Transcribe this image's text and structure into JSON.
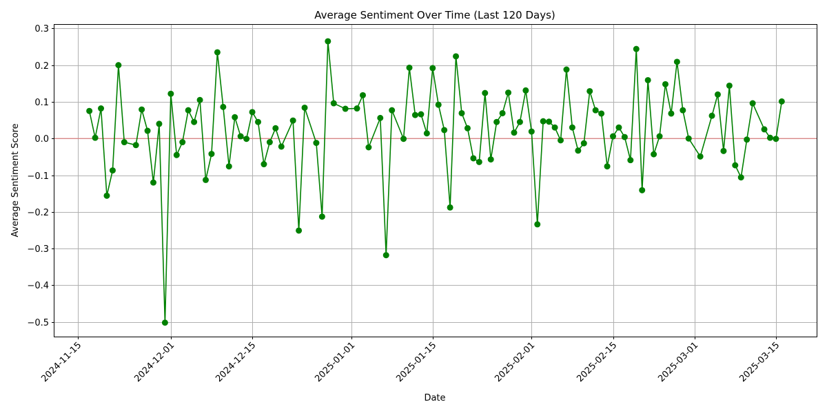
{
  "chart_data": {
    "type": "line",
    "title": "Average Sentiment Over Time (Last 120 Days)",
    "xlabel": "Date",
    "ylabel": "Average Sentiment Score",
    "x_ticks": [
      "2024-11-15",
      "2024-12-01",
      "2024-12-15",
      "2025-01-01",
      "2025-01-15",
      "2025-02-01",
      "2025-02-15",
      "2025-03-01",
      "2025-03-15"
    ],
    "y_ticks": [
      -0.5,
      -0.4,
      -0.3,
      -0.2,
      -0.1,
      0.0,
      0.1,
      0.2,
      0.3
    ],
    "ylim": [
      -0.54,
      0.31
    ],
    "xlim": [
      "2024-11-11",
      "2025-03-22"
    ],
    "grid": true,
    "reference_line": {
      "y": 0.0,
      "color": "#e07b7b"
    },
    "colors": {
      "series": "#008000",
      "reference": "#e07b7b",
      "grid": "#b0b0b0"
    },
    "series": [
      {
        "marker": "circle",
        "color": "#008000",
        "points": [
          {
            "x": "2024-11-17",
            "y": 0.075
          },
          {
            "x": "2024-11-18",
            "y": 0.002
          },
          {
            "x": "2024-11-19",
            "y": 0.082
          },
          {
            "x": "2024-11-20",
            "y": -0.156
          },
          {
            "x": "2024-11-21",
            "y": -0.087
          },
          {
            "x": "2024-11-22",
            "y": 0.2
          },
          {
            "x": "2024-11-23",
            "y": -0.01
          },
          {
            "x": "2024-11-25",
            "y": -0.018
          },
          {
            "x": "2024-11-26",
            "y": 0.079
          },
          {
            "x": "2024-11-27",
            "y": 0.021
          },
          {
            "x": "2024-11-28",
            "y": -0.12
          },
          {
            "x": "2024-11-29",
            "y": 0.04
          },
          {
            "x": "2024-11-30",
            "y": -0.502
          },
          {
            "x": "2024-12-01",
            "y": 0.122
          },
          {
            "x": "2024-12-02",
            "y": -0.045
          },
          {
            "x": "2024-12-03",
            "y": -0.01
          },
          {
            "x": "2024-12-04",
            "y": 0.077
          },
          {
            "x": "2024-12-05",
            "y": 0.045
          },
          {
            "x": "2024-12-06",
            "y": 0.105
          },
          {
            "x": "2024-12-07",
            "y": -0.113
          },
          {
            "x": "2024-12-08",
            "y": -0.042
          },
          {
            "x": "2024-12-09",
            "y": 0.235
          },
          {
            "x": "2024-12-10",
            "y": 0.086
          },
          {
            "x": "2024-12-11",
            "y": -0.076
          },
          {
            "x": "2024-12-12",
            "y": 0.058
          },
          {
            "x": "2024-12-13",
            "y": 0.006
          },
          {
            "x": "2024-12-14",
            "y": -0.001
          },
          {
            "x": "2024-12-15",
            "y": 0.072
          },
          {
            "x": "2024-12-16",
            "y": 0.045
          },
          {
            "x": "2024-12-17",
            "y": -0.07
          },
          {
            "x": "2024-12-18",
            "y": -0.01
          },
          {
            "x": "2024-12-19",
            "y": 0.028
          },
          {
            "x": "2024-12-20",
            "y": -0.022
          },
          {
            "x": "2024-12-22",
            "y": 0.049
          },
          {
            "x": "2024-12-23",
            "y": -0.251
          },
          {
            "x": "2024-12-24",
            "y": 0.084
          },
          {
            "x": "2024-12-26",
            "y": -0.012
          },
          {
            "x": "2024-12-27",
            "y": -0.213
          },
          {
            "x": "2024-12-28",
            "y": 0.265
          },
          {
            "x": "2024-12-29",
            "y": 0.096
          },
          {
            "x": "2024-12-31",
            "y": 0.081
          },
          {
            "x": "2025-01-02",
            "y": 0.082
          },
          {
            "x": "2025-01-03",
            "y": 0.118
          },
          {
            "x": "2025-01-04",
            "y": -0.024
          },
          {
            "x": "2025-01-06",
            "y": 0.056
          },
          {
            "x": "2025-01-07",
            "y": -0.318
          },
          {
            "x": "2025-01-08",
            "y": 0.077
          },
          {
            "x": "2025-01-10",
            "y": -0.001
          },
          {
            "x": "2025-01-11",
            "y": 0.193
          },
          {
            "x": "2025-01-12",
            "y": 0.064
          },
          {
            "x": "2025-01-13",
            "y": 0.066
          },
          {
            "x": "2025-01-14",
            "y": 0.014
          },
          {
            "x": "2025-01-15",
            "y": 0.192
          },
          {
            "x": "2025-01-16",
            "y": 0.092
          },
          {
            "x": "2025-01-17",
            "y": 0.023
          },
          {
            "x": "2025-01-18",
            "y": -0.188
          },
          {
            "x": "2025-01-19",
            "y": 0.224
          },
          {
            "x": "2025-01-20",
            "y": 0.069
          },
          {
            "x": "2025-01-21",
            "y": 0.028
          },
          {
            "x": "2025-01-22",
            "y": -0.054
          },
          {
            "x": "2025-01-23",
            "y": -0.064
          },
          {
            "x": "2025-01-24",
            "y": 0.124
          },
          {
            "x": "2025-01-25",
            "y": -0.057
          },
          {
            "x": "2025-01-26",
            "y": 0.045
          },
          {
            "x": "2025-01-27",
            "y": 0.069
          },
          {
            "x": "2025-01-28",
            "y": 0.125
          },
          {
            "x": "2025-01-29",
            "y": 0.016
          },
          {
            "x": "2025-01-30",
            "y": 0.045
          },
          {
            "x": "2025-01-31",
            "y": 0.131
          },
          {
            "x": "2025-02-01",
            "y": 0.019
          },
          {
            "x": "2025-02-02",
            "y": -0.234
          },
          {
            "x": "2025-02-03",
            "y": 0.047
          },
          {
            "x": "2025-02-04",
            "y": 0.046
          },
          {
            "x": "2025-02-05",
            "y": 0.03
          },
          {
            "x": "2025-02-06",
            "y": -0.005
          },
          {
            "x": "2025-02-07",
            "y": 0.188
          },
          {
            "x": "2025-02-08",
            "y": 0.03
          },
          {
            "x": "2025-02-09",
            "y": -0.033
          },
          {
            "x": "2025-02-10",
            "y": -0.013
          },
          {
            "x": "2025-02-11",
            "y": 0.129
          },
          {
            "x": "2025-02-12",
            "y": 0.077
          },
          {
            "x": "2025-02-13",
            "y": 0.068
          },
          {
            "x": "2025-02-14",
            "y": -0.076
          },
          {
            "x": "2025-02-15",
            "y": 0.006
          },
          {
            "x": "2025-02-16",
            "y": 0.03
          },
          {
            "x": "2025-02-17",
            "y": 0.004
          },
          {
            "x": "2025-02-18",
            "y": -0.059
          },
          {
            "x": "2025-02-19",
            "y": 0.244
          },
          {
            "x": "2025-02-20",
            "y": -0.141
          },
          {
            "x": "2025-02-21",
            "y": 0.159
          },
          {
            "x": "2025-02-22",
            "y": -0.043
          },
          {
            "x": "2025-02-23",
            "y": 0.006
          },
          {
            "x": "2025-02-24",
            "y": 0.148
          },
          {
            "x": "2025-02-25",
            "y": 0.068
          },
          {
            "x": "2025-02-26",
            "y": 0.209
          },
          {
            "x": "2025-02-27",
            "y": 0.077
          },
          {
            "x": "2025-02-28",
            "y": 0.0
          },
          {
            "x": "2025-03-02",
            "y": -0.049
          },
          {
            "x": "2025-03-04",
            "y": 0.062
          },
          {
            "x": "2025-03-05",
            "y": 0.12
          },
          {
            "x": "2025-03-06",
            "y": -0.034
          },
          {
            "x": "2025-03-07",
            "y": 0.144
          },
          {
            "x": "2025-03-08",
            "y": -0.073
          },
          {
            "x": "2025-03-09",
            "y": -0.106
          },
          {
            "x": "2025-03-10",
            "y": -0.003
          },
          {
            "x": "2025-03-11",
            "y": 0.096
          },
          {
            "x": "2025-03-13",
            "y": 0.025
          },
          {
            "x": "2025-03-14",
            "y": 0.002
          },
          {
            "x": "2025-03-15",
            "y": -0.001
          },
          {
            "x": "2025-03-16",
            "y": 0.101
          }
        ]
      }
    ]
  }
}
